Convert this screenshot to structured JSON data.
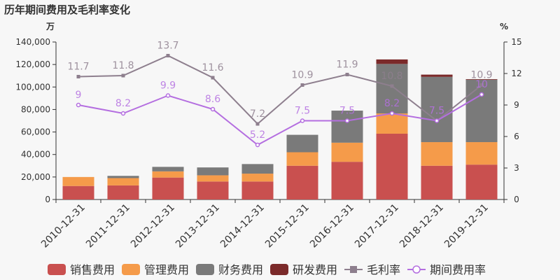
{
  "title": "历年期间费用及毛利率变化",
  "chart_data": {
    "type": "bar",
    "title": "历年期间费用及毛利率变化",
    "left_unit": "万",
    "right_unit": "%",
    "categories": [
      "2010-12-31",
      "2011-12-31",
      "2012-12-31",
      "2013-12-31",
      "2014-12-31",
      "2015-12-31",
      "2016-12-31",
      "2017-12-31",
      "2018-12-31",
      "2019-12-31"
    ],
    "ylim": [
      0,
      140000
    ],
    "y2lim": [
      0,
      15
    ],
    "yticks": [
      "0",
      "20,000",
      "40,000",
      "60,000",
      "80,000",
      "100,000",
      "120,000",
      "140,000"
    ],
    "y2ticks": [
      "0",
      "3",
      "6",
      "9",
      "12",
      "15"
    ],
    "grid": false,
    "legend_position": "bottom",
    "bar_series": [
      {
        "name": "销售费用",
        "color": "#c9504f",
        "values": [
          12000,
          12500,
          19500,
          16000,
          16000,
          30000,
          33500,
          58500,
          30000,
          31000
        ]
      },
      {
        "name": "管理费用",
        "color": "#f59b4a",
        "values": [
          8000,
          6500,
          5500,
          5500,
          7000,
          12000,
          17000,
          18000,
          21000,
          20000
        ]
      },
      {
        "name": "财务费用",
        "color": "#7a7a7a",
        "values": [
          0,
          2000,
          4000,
          7000,
          8500,
          15500,
          28500,
          44000,
          58000,
          55500
        ]
      },
      {
        "name": "研发费用",
        "color": "#7b2a2a",
        "values": [
          0,
          0,
          0,
          0,
          0,
          0,
          0,
          4000,
          2000,
          500
        ]
      }
    ],
    "line_series": [
      {
        "name": "毛利率",
        "color": "#8e7f8e",
        "marker": "square",
        "values": [
          11.7,
          11.8,
          13.7,
          11.6,
          7.2,
          10.9,
          11.9,
          10.8,
          7.5,
          10.9
        ],
        "labels": [
          "11.7",
          "11.8",
          "13.7",
          "11.6",
          "7.2",
          "10.9",
          "11.9",
          "10.8",
          "7.5",
          "10.9"
        ]
      },
      {
        "name": "期间费用率",
        "color": "#b46ee0",
        "marker": "circle",
        "values": [
          9,
          8.2,
          9.9,
          8.6,
          5.2,
          7.5,
          7.5,
          8.2,
          7.5,
          10
        ],
        "labels": [
          "9",
          "8.2",
          "9.9",
          "8.6",
          "5.2",
          "7.5",
          "7.5",
          "8.2",
          "7.5",
          "10"
        ]
      }
    ]
  }
}
